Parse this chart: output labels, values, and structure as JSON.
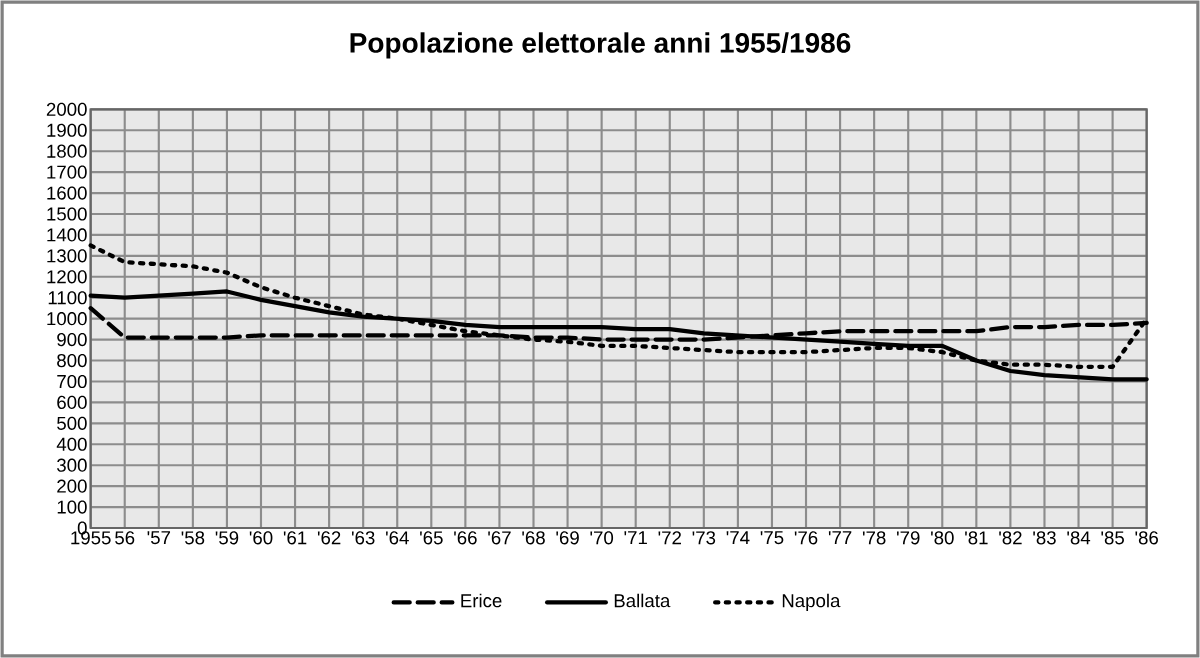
{
  "chart_data": {
    "type": "line",
    "title": "Popolazione elettorale anni 1955/1986",
    "categories": [
      "1955",
      "56",
      "'57",
      "'58",
      "'59",
      "'60",
      "'61",
      "'62",
      "'63",
      "'64",
      "'65",
      "'66",
      "'67",
      "'68",
      "'69",
      "'70",
      "'71",
      "'72",
      "'73",
      "'74",
      "'75",
      "'76",
      "'77",
      "'78",
      "'79",
      "'80",
      "'81",
      "'82",
      "'83",
      "'84",
      "'85",
      "'86"
    ],
    "series": [
      {
        "name": "Erice",
        "color": "#000000",
        "line_style": "dashed",
        "values": [
          1050,
          910,
          910,
          910,
          910,
          920,
          920,
          920,
          920,
          920,
          920,
          920,
          920,
          910,
          910,
          900,
          900,
          900,
          900,
          910,
          920,
          930,
          940,
          940,
          940,
          940,
          940,
          960,
          960,
          970,
          970,
          980
        ]
      },
      {
        "name": "Ballata",
        "color": "#000000",
        "line_style": "solid",
        "values": [
          1110,
          1100,
          1110,
          1120,
          1130,
          1090,
          1060,
          1030,
          1010,
          1000,
          990,
          970,
          960,
          960,
          960,
          960,
          950,
          950,
          930,
          920,
          910,
          900,
          890,
          880,
          870,
          870,
          800,
          750,
          730,
          720,
          710,
          710
        ]
      },
      {
        "name": "Napola",
        "color": "#000000",
        "line_style": "dotted",
        "values": [
          1350,
          1270,
          1260,
          1250,
          1220,
          1150,
          1100,
          1060,
          1020,
          1000,
          970,
          940,
          920,
          900,
          890,
          870,
          870,
          860,
          850,
          840,
          840,
          840,
          850,
          860,
          860,
          840,
          800,
          780,
          780,
          770,
          770,
          1000
        ]
      }
    ],
    "ylim": [
      0,
      2000
    ],
    "yticks": [
      0,
      100,
      200,
      300,
      400,
      500,
      600,
      700,
      800,
      900,
      1000,
      1100,
      1200,
      1300,
      1400,
      1500,
      1600,
      1700,
      1800,
      1900,
      2000
    ],
    "grid": true,
    "legend": "bottom",
    "marker": "none"
  }
}
